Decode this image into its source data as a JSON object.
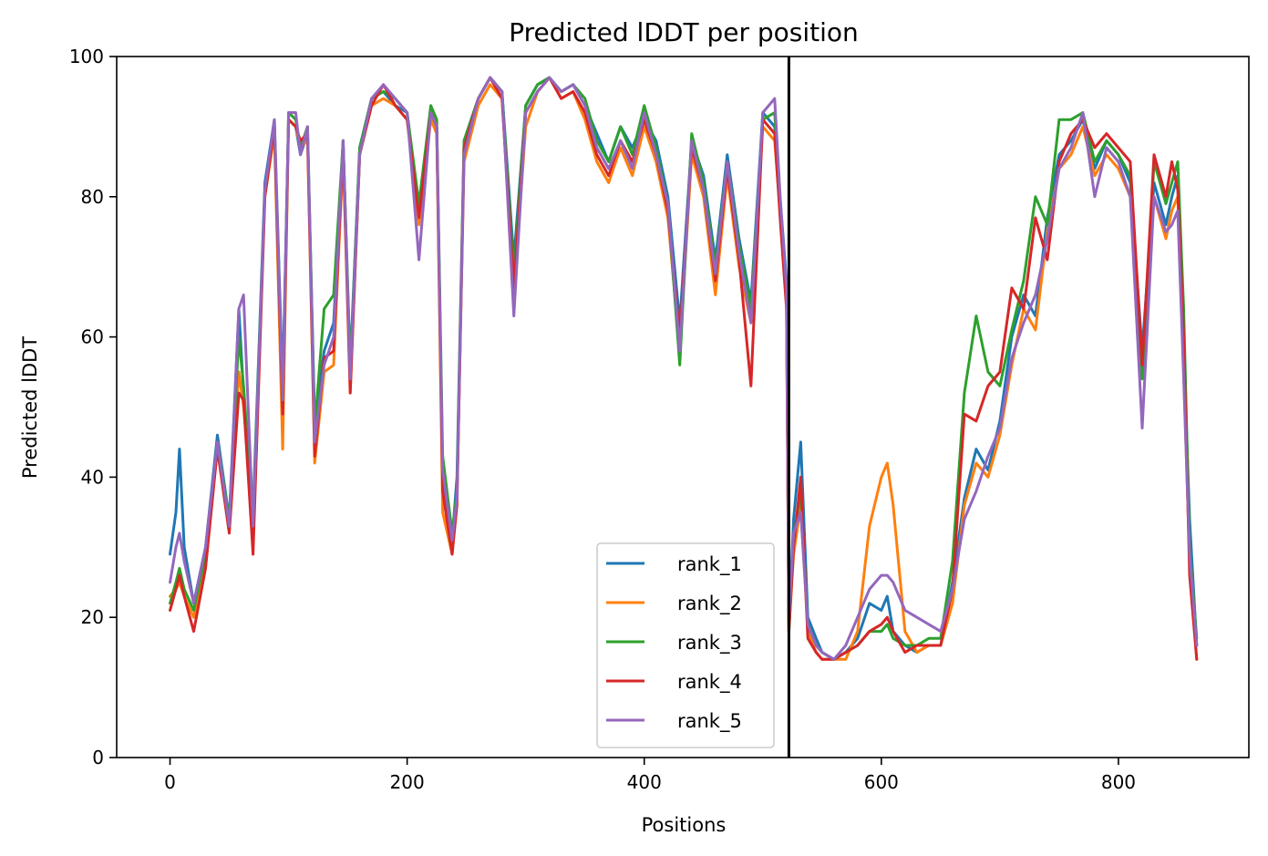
{
  "chart_data": {
    "type": "line",
    "title": "Predicted lDDT per position",
    "xlabel": "Positions",
    "ylabel": "Predicted lDDT",
    "xlim": [
      -45,
      910
    ],
    "ylim": [
      0,
      100
    ],
    "x_ticks": [
      0,
      200,
      400,
      600,
      800
    ],
    "y_ticks": [
      0,
      20,
      40,
      60,
      80,
      100
    ],
    "grid": false,
    "legend_position": "lower-center",
    "chain_boundary_x": 522,
    "series": [
      {
        "name": "rank_1",
        "color": "#1f77b4",
        "x": [
          0,
          5,
          8,
          12,
          20,
          30,
          40,
          50,
          58,
          62,
          70,
          80,
          88,
          95,
          100,
          106,
          110,
          116,
          122,
          130,
          138,
          146,
          152,
          160,
          170,
          180,
          190,
          200,
          210,
          220,
          225,
          230,
          238,
          242,
          248,
          260,
          270,
          280,
          290,
          300,
          310,
          320,
          330,
          340,
          350,
          360,
          370,
          380,
          390,
          400,
          410,
          420,
          430,
          440,
          450,
          460,
          470,
          480,
          490,
          500,
          510,
          515,
          520,
          522,
          526,
          532,
          538,
          545,
          550,
          560,
          570,
          580,
          590,
          600,
          605,
          610,
          620,
          630,
          640,
          650,
          660,
          670,
          680,
          690,
          700,
          710,
          720,
          730,
          740,
          750,
          760,
          770,
          780,
          790,
          800,
          810,
          820,
          830,
          840,
          845,
          850,
          855,
          860,
          866
        ],
        "y": [
          29,
          35,
          44,
          30,
          22,
          30,
          46,
          34,
          64,
          52,
          35,
          82,
          91,
          53,
          91,
          90,
          86,
          89,
          48,
          58,
          62,
          88,
          56,
          87,
          94,
          95,
          93,
          92,
          78,
          92,
          90,
          40,
          31,
          40,
          88,
          94,
          97,
          95,
          71,
          93,
          96,
          97,
          95,
          96,
          93,
          89,
          85,
          90,
          87,
          91,
          88,
          80,
          62,
          88,
          83,
          71,
          86,
          74,
          65,
          92,
          90,
          79,
          68,
          19,
          34,
          45,
          20,
          17,
          15,
          14,
          15,
          17,
          22,
          21,
          23,
          18,
          16,
          15,
          16,
          16,
          25,
          37,
          44,
          41,
          48,
          60,
          66,
          63,
          77,
          86,
          88,
          91,
          84,
          88,
          86,
          82,
          58,
          82,
          76,
          80,
          83,
          58,
          34,
          16
        ]
      },
      {
        "name": "rank_2",
        "color": "#ff7f0e",
        "x": [
          0,
          5,
          8,
          12,
          20,
          30,
          40,
          50,
          58,
          62,
          70,
          80,
          88,
          95,
          100,
          106,
          110,
          116,
          122,
          130,
          138,
          146,
          152,
          160,
          170,
          180,
          190,
          200,
          210,
          220,
          225,
          230,
          238,
          242,
          248,
          260,
          270,
          280,
          290,
          300,
          310,
          320,
          330,
          340,
          350,
          360,
          370,
          380,
          390,
          400,
          410,
          420,
          430,
          440,
          450,
          460,
          470,
          480,
          490,
          500,
          510,
          515,
          520,
          522,
          526,
          532,
          538,
          545,
          550,
          560,
          570,
          580,
          590,
          600,
          605,
          610,
          620,
          630,
          640,
          650,
          660,
          670,
          680,
          690,
          700,
          710,
          720,
          730,
          740,
          750,
          760,
          770,
          780,
          790,
          800,
          810,
          820,
          830,
          840,
          845,
          850,
          855,
          860,
          866
        ],
        "y": [
          23,
          24,
          25,
          23,
          20,
          28,
          44,
          33,
          55,
          50,
          33,
          80,
          89,
          44,
          91,
          90,
          87,
          88,
          42,
          55,
          56,
          86,
          52,
          86,
          93,
          94,
          93,
          91,
          76,
          91,
          89,
          35,
          29,
          37,
          85,
          93,
          96,
          94,
          66,
          90,
          95,
          97,
          94,
          95,
          91,
          85,
          82,
          87,
          83,
          90,
          85,
          77,
          58,
          86,
          80,
          66,
          83,
          70,
          62,
          90,
          88,
          77,
          65,
          18,
          29,
          36,
          18,
          15,
          14,
          14,
          14,
          18,
          33,
          40,
          42,
          36,
          18,
          15,
          16,
          16,
          22,
          36,
          42,
          40,
          46,
          56,
          64,
          61,
          75,
          84,
          86,
          90,
          83,
          86,
          84,
          80,
          55,
          80,
          74,
          78,
          80,
          55,
          28,
          14
        ]
      },
      {
        "name": "rank_3",
        "color": "#2ca02c",
        "x": [
          0,
          5,
          8,
          12,
          20,
          30,
          40,
          50,
          58,
          62,
          70,
          80,
          88,
          95,
          100,
          106,
          110,
          116,
          122,
          130,
          138,
          146,
          152,
          160,
          170,
          180,
          190,
          200,
          210,
          220,
          225,
          230,
          238,
          242,
          248,
          260,
          270,
          280,
          290,
          300,
          310,
          320,
          330,
          340,
          350,
          360,
          370,
          380,
          390,
          400,
          410,
          420,
          430,
          440,
          450,
          460,
          470,
          480,
          490,
          500,
          510,
          515,
          520,
          522,
          526,
          532,
          538,
          545,
          550,
          560,
          570,
          580,
          590,
          600,
          605,
          610,
          620,
          630,
          640,
          650,
          660,
          670,
          680,
          690,
          700,
          710,
          720,
          730,
          740,
          750,
          760,
          770,
          780,
          790,
          800,
          810,
          820,
          830,
          840,
          845,
          850,
          855,
          860,
          866
        ],
        "y": [
          22,
          25,
          27,
          24,
          21,
          29,
          45,
          34,
          60,
          53,
          34,
          81,
          90,
          50,
          92,
          91,
          87,
          90,
          47,
          64,
          66,
          88,
          55,
          87,
          94,
          95,
          94,
          92,
          79,
          93,
          91,
          43,
          32,
          38,
          88,
          94,
          97,
          95,
          69,
          93,
          96,
          97,
          95,
          96,
          94,
          88,
          85,
          90,
          86,
          93,
          87,
          79,
          56,
          89,
          82,
          70,
          85,
          73,
          64,
          91,
          92,
          78,
          66,
          18,
          31,
          38,
          19,
          16,
          15,
          14,
          15,
          16,
          18,
          18,
          19,
          17,
          16,
          16,
          17,
          17,
          28,
          52,
          63,
          55,
          53,
          61,
          68,
          80,
          76,
          91,
          91,
          92,
          85,
          88,
          86,
          83,
          54,
          85,
          79,
          82,
          85,
          64,
          30,
          17
        ]
      },
      {
        "name": "rank_4",
        "color": "#d62728",
        "x": [
          0,
          5,
          8,
          12,
          20,
          30,
          40,
          50,
          58,
          62,
          70,
          80,
          88,
          95,
          100,
          106,
          110,
          116,
          122,
          130,
          138,
          146,
          152,
          160,
          170,
          180,
          190,
          200,
          210,
          220,
          225,
          230,
          238,
          242,
          248,
          260,
          270,
          280,
          290,
          300,
          310,
          320,
          330,
          340,
          350,
          360,
          370,
          380,
          390,
          400,
          410,
          420,
          430,
          440,
          450,
          460,
          470,
          480,
          490,
          500,
          510,
          515,
          520,
          522,
          526,
          532,
          538,
          545,
          550,
          560,
          570,
          580,
          590,
          600,
          605,
          610,
          620,
          630,
          640,
          650,
          660,
          670,
          680,
          690,
          700,
          710,
          720,
          730,
          740,
          750,
          760,
          770,
          780,
          790,
          800,
          810,
          820,
          830,
          840,
          845,
          850,
          855,
          860,
          866
        ],
        "y": [
          21,
          24,
          26,
          23,
          18,
          27,
          44,
          32,
          52,
          51,
          29,
          80,
          90,
          49,
          91,
          90,
          88,
          89,
          43,
          57,
          58,
          87,
          52,
          86,
          93,
          96,
          93,
          91,
          77,
          92,
          90,
          38,
          29,
          36,
          87,
          94,
          97,
          94,
          67,
          92,
          95,
          97,
          94,
          95,
          92,
          86,
          83,
          88,
          85,
          91,
          86,
          78,
          60,
          87,
          81,
          68,
          84,
          71,
          53,
          91,
          89,
          76,
          64,
          18,
          30,
          40,
          17,
          15,
          14,
          14,
          15,
          16,
          18,
          19,
          20,
          18,
          15,
          16,
          16,
          16,
          24,
          49,
          48,
          53,
          55,
          67,
          64,
          77,
          71,
          85,
          89,
          91,
          87,
          89,
          87,
          85,
          56,
          86,
          80,
          85,
          81,
          60,
          26,
          14
        ]
      },
      {
        "name": "rank_5",
        "color": "#9467bd",
        "x": [
          0,
          5,
          8,
          12,
          20,
          30,
          40,
          50,
          58,
          62,
          70,
          80,
          88,
          95,
          100,
          106,
          110,
          116,
          122,
          130,
          138,
          146,
          152,
          160,
          170,
          180,
          190,
          200,
          210,
          220,
          225,
          230,
          238,
          242,
          248,
          260,
          270,
          280,
          290,
          300,
          310,
          320,
          330,
          340,
          350,
          360,
          370,
          380,
          390,
          400,
          410,
          420,
          430,
          440,
          450,
          460,
          470,
          480,
          490,
          500,
          510,
          515,
          520,
          522,
          526,
          532,
          538,
          545,
          550,
          560,
          570,
          580,
          590,
          600,
          605,
          610,
          620,
          630,
          640,
          650,
          660,
          670,
          680,
          690,
          700,
          710,
          720,
          730,
          740,
          750,
          760,
          770,
          780,
          790,
          800,
          810,
          820,
          830,
          840,
          845,
          850,
          855,
          860,
          866
        ],
        "y": [
          25,
          30,
          32,
          28,
          22,
          30,
          45,
          33,
          64,
          66,
          33,
          81,
          91,
          51,
          92,
          92,
          86,
          90,
          45,
          56,
          60,
          88,
          54,
          86,
          94,
          96,
          94,
          92,
          71,
          92,
          90,
          41,
          31,
          37,
          86,
          94,
          97,
          95,
          63,
          92,
          95,
          97,
          95,
          96,
          93,
          87,
          84,
          88,
          84,
          92,
          86,
          79,
          58,
          88,
          81,
          69,
          85,
          72,
          62,
          92,
          94,
          79,
          67,
          20,
          32,
          35,
          19,
          16,
          15,
          14,
          16,
          20,
          24,
          26,
          26,
          25,
          21,
          20,
          19,
          18,
          24,
          34,
          38,
          43,
          47,
          57,
          62,
          66,
          74,
          84,
          87,
          92,
          80,
          87,
          85,
          80,
          47,
          80,
          75,
          76,
          78,
          54,
          29,
          16
        ]
      }
    ]
  }
}
